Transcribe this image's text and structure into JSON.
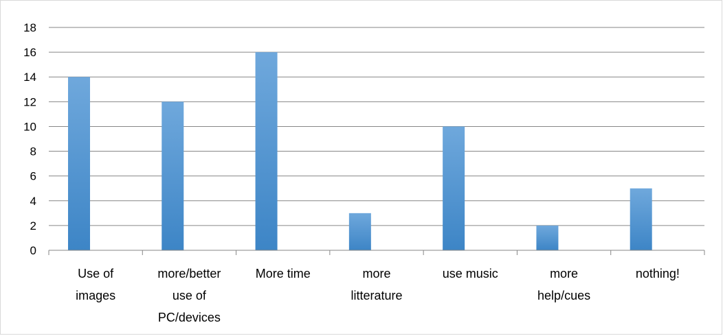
{
  "chart_data": {
    "type": "bar",
    "title": "",
    "xlabel": "",
    "ylabel": "",
    "categories": [
      [
        "Use of",
        "images"
      ],
      [
        "more/better",
        "use of",
        "PC/devices"
      ],
      [
        "More time"
      ],
      [
        "more",
        "litterature"
      ],
      [
        "use music"
      ],
      [
        "more",
        "help/cues"
      ],
      [
        "nothing!"
      ]
    ],
    "values": [
      14,
      12,
      16,
      3,
      10,
      2,
      5
    ],
    "ylim": [
      0,
      18
    ],
    "ytick_step": 2,
    "grid": true,
    "legend": "none",
    "colors": {
      "bar_top": "#6fa8dc",
      "bar_bottom": "#3d85c6",
      "grid": "#868686",
      "axis": "#868686",
      "frame": "#d9d9d9"
    }
  }
}
